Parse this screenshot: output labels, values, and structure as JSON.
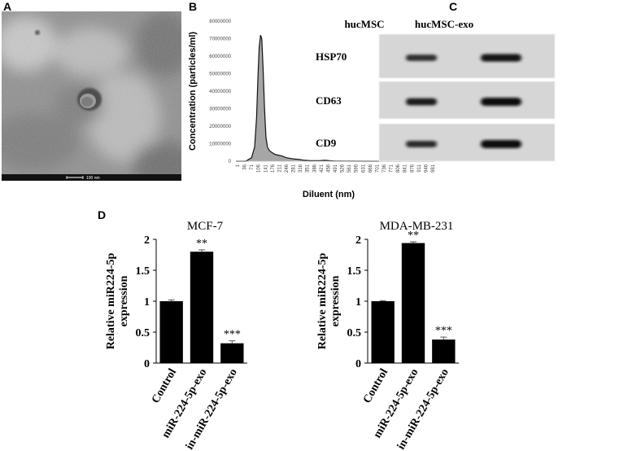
{
  "panels": {
    "a": {
      "letter": "A",
      "scalebar_label": "100 nm"
    },
    "b": {
      "letter": "B"
    },
    "c": {
      "letter": "C",
      "columns": [
        "hucMSC",
        "hucMSC-exo"
      ],
      "rows": [
        {
          "label": "HSP70",
          "intensity": [
            0.55,
            0.85
          ]
        },
        {
          "label": "CD63",
          "intensity": [
            0.75,
            0.98
          ]
        },
        {
          "label": "CD9",
          "intensity": [
            0.6,
            1.0
          ]
        }
      ]
    },
    "d": {
      "letter": "D"
    }
  },
  "chart_data": [
    {
      "type": "area",
      "xlabel": "Diluent (nm)",
      "ylabel": "Concentration (particles/ml)",
      "ylim": [
        0,
        80000000
      ],
      "yticks": [
        "0",
        "10000000",
        "20000000",
        "30000000",
        "40000000",
        "50000000",
        "60000000",
        "70000000",
        "80000000"
      ],
      "xticks": [
        "1",
        "36",
        "71",
        "106",
        "141",
        "176",
        "211",
        "246",
        "281",
        "316",
        "351",
        "386",
        "421",
        "456",
        "491",
        "526",
        "561",
        "596",
        "631",
        "666",
        "701",
        "736",
        "771",
        "806",
        "841",
        "876",
        "911",
        "946",
        "981"
      ],
      "xlim": [
        1,
        1000
      ],
      "x": [
        1,
        50,
        80,
        95,
        105,
        112,
        118,
        125,
        131,
        138,
        145,
        152,
        160,
        170,
        182,
        196,
        212,
        232,
        255,
        280,
        300,
        320,
        340,
        360,
        380,
        420,
        450,
        470,
        500,
        560,
        650,
        800,
        1000
      ],
      "y": [
        0,
        0,
        2000000,
        8000000,
        25000000,
        48000000,
        65000000,
        72000000,
        70000000,
        52000000,
        30000000,
        14000000,
        8000000,
        6000000,
        5000000,
        4000000,
        3500000,
        3000000,
        2000000,
        1500000,
        1200000,
        1000000,
        600000,
        400000,
        300000,
        300000,
        500000,
        300000,
        100000,
        50000,
        0,
        0,
        0
      ]
    },
    {
      "type": "bar",
      "title": "MCF-7",
      "ylabel": "Relative miR224-5p expression",
      "categories": [
        "Control",
        "miR-224-5p-exo",
        "in-miR-224-5p-exo"
      ],
      "values": [
        1.0,
        1.8,
        0.32
      ],
      "errors": [
        0.02,
        0.03,
        0.04
      ],
      "annotations": [
        "",
        "**",
        "***"
      ],
      "ylim": [
        0,
        2
      ],
      "yticks": [
        "0",
        "0.5",
        "1",
        "1.5",
        "2"
      ]
    },
    {
      "type": "bar",
      "title": "MDA-MB-231",
      "ylabel": "Relative miR224-5p expression",
      "categories": [
        "Control",
        "miR-224-5p-exo",
        "in-miR-224-5p-exo"
      ],
      "values": [
        1.0,
        1.94,
        0.38
      ],
      "errors": [
        0.01,
        0.02,
        0.04
      ],
      "annotations": [
        "",
        "**",
        "***"
      ],
      "ylim": [
        0,
        2
      ],
      "yticks": [
        "0",
        "0.5",
        "1",
        "1.5",
        "2"
      ]
    }
  ]
}
